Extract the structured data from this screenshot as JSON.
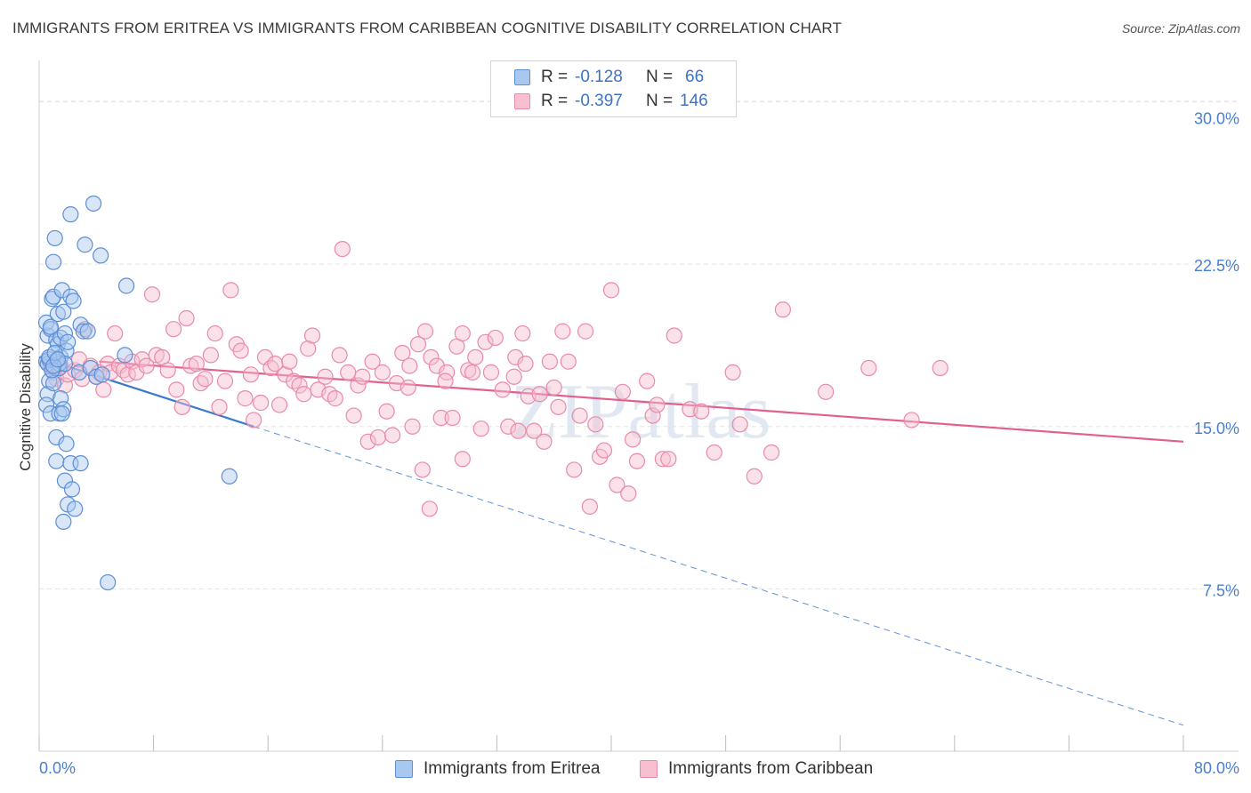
{
  "title": "IMMIGRANTS FROM ERITREA VS IMMIGRANTS FROM CARIBBEAN COGNITIVE DISABILITY CORRELATION CHART",
  "source": "Source: ZipAtlas.com",
  "watermark": "ZIPatlas",
  "legend": {
    "rows": [
      {
        "r_label": "R =",
        "r_value": "-0.128",
        "n_label": "N =",
        "n_value": "66"
      },
      {
        "r_label": "R =",
        "r_value": "-0.397",
        "n_label": "N =",
        "n_value": "146"
      }
    ]
  },
  "bottom_legend": {
    "series1": "Immigrants from Eritrea",
    "series2": "Immigrants from Caribbean"
  },
  "colors": {
    "eritrea_fill": "#a8c8f0",
    "eritrea_stroke": "#5b8fd6",
    "eritrea_line": "#3a78d0",
    "caribbean_fill": "#f7bfd0",
    "caribbean_stroke": "#e98aa8",
    "caribbean_line": "#e2608e",
    "tick_label": "#4a7fd0"
  },
  "chart_data": {
    "type": "scatter",
    "xlabel": "",
    "ylabel": "Cognitive Disability",
    "xlim": [
      0,
      80
    ],
    "ylim": [
      0,
      31.5
    ],
    "x_tick_labels": [
      "0.0%",
      "80.0%"
    ],
    "y_ticks": [
      7.5,
      15.0,
      22.5,
      30.0
    ],
    "y_tick_labels": [
      "7.5%",
      "15.0%",
      "22.5%",
      "30.0%"
    ],
    "grid": true,
    "legend_position": "top-center",
    "series": [
      {
        "name": "Immigrants from Eritrea",
        "points": [
          [
            0.5,
            18.0
          ],
          [
            0.6,
            19.2
          ],
          [
            0.5,
            19.8
          ],
          [
            0.6,
            17.9
          ],
          [
            0.7,
            18.1
          ],
          [
            0.8,
            19.5
          ],
          [
            0.9,
            20.9
          ],
          [
            1.0,
            21.0
          ],
          [
            0.7,
            17.1
          ],
          [
            0.6,
            16.5
          ],
          [
            0.5,
            16.0
          ],
          [
            0.8,
            15.6
          ],
          [
            1.0,
            22.6
          ],
          [
            1.1,
            23.7
          ],
          [
            1.2,
            18.0
          ],
          [
            1.2,
            19.0
          ],
          [
            1.3,
            20.2
          ],
          [
            1.3,
            18.8
          ],
          [
            1.4,
            17.7
          ],
          [
            1.4,
            17.9
          ],
          [
            1.5,
            18.2
          ],
          [
            1.5,
            19.1
          ],
          [
            1.6,
            21.3
          ],
          [
            1.7,
            20.3
          ],
          [
            1.8,
            19.3
          ],
          [
            1.9,
            18.5
          ],
          [
            2.0,
            18.9
          ],
          [
            1.8,
            17.9
          ],
          [
            1.5,
            16.3
          ],
          [
            1.4,
            15.6
          ],
          [
            1.7,
            15.8
          ],
          [
            1.6,
            15.6
          ],
          [
            1.2,
            14.5
          ],
          [
            1.2,
            13.4
          ],
          [
            1.9,
            14.2
          ],
          [
            1.8,
            12.5
          ],
          [
            2.0,
            11.4
          ],
          [
            1.7,
            10.6
          ],
          [
            2.2,
            21.0
          ],
          [
            2.4,
            20.8
          ],
          [
            2.2,
            13.3
          ],
          [
            2.3,
            12.1
          ],
          [
            2.5,
            11.2
          ],
          [
            2.8,
            17.5
          ],
          [
            2.9,
            13.3
          ],
          [
            2.9,
            19.7
          ],
          [
            3.1,
            19.4
          ],
          [
            3.2,
            23.4
          ],
          [
            3.4,
            19.4
          ],
          [
            3.6,
            17.7
          ],
          [
            4.0,
            17.3
          ],
          [
            4.3,
            22.9
          ],
          [
            4.4,
            17.4
          ],
          [
            2.2,
            24.8
          ],
          [
            3.8,
            25.3
          ],
          [
            6.1,
            21.5
          ],
          [
            6.0,
            18.3
          ],
          [
            4.8,
            7.8
          ],
          [
            13.3,
            12.7
          ],
          [
            1.0,
            17.0
          ],
          [
            0.7,
            18.2
          ],
          [
            0.9,
            17.6
          ],
          [
            1.0,
            17.8
          ],
          [
            0.8,
            19.6
          ],
          [
            1.1,
            18.4
          ],
          [
            1.3,
            18.1
          ]
        ],
        "trend": {
          "x": [
            0,
            15
          ],
          "y": [
            18.2,
            15.0
          ],
          "extended": {
            "x": [
              15,
              80
            ],
            "y": [
              15.0,
              1.2
            ]
          }
        }
      },
      {
        "name": "Immigrants from Caribbean",
        "points": [
          [
            0.8,
            17.8
          ],
          [
            1.0,
            17.5
          ],
          [
            1.2,
            17.2
          ],
          [
            1.5,
            17.8
          ],
          [
            1.8,
            16.9
          ],
          [
            2.0,
            17.4
          ],
          [
            2.5,
            17.6
          ],
          [
            2.8,
            18.1
          ],
          [
            3.0,
            17.2
          ],
          [
            3.2,
            19.5
          ],
          [
            3.6,
            17.8
          ],
          [
            4.0,
            17.3
          ],
          [
            4.2,
            17.5
          ],
          [
            4.5,
            16.7
          ],
          [
            4.8,
            17.9
          ],
          [
            5.0,
            17.5
          ],
          [
            5.3,
            19.3
          ],
          [
            5.6,
            17.8
          ],
          [
            5.9,
            17.6
          ],
          [
            6.2,
            17.4
          ],
          [
            6.5,
            18.0
          ],
          [
            6.8,
            17.5
          ],
          [
            7.2,
            18.1
          ],
          [
            7.5,
            17.8
          ],
          [
            7.9,
            21.1
          ],
          [
            8.2,
            18.3
          ],
          [
            8.6,
            18.2
          ],
          [
            9.0,
            17.6
          ],
          [
            9.4,
            19.5
          ],
          [
            9.6,
            16.7
          ],
          [
            10.0,
            15.9
          ],
          [
            10.3,
            20.0
          ],
          [
            10.6,
            17.8
          ],
          [
            11.0,
            17.9
          ],
          [
            11.3,
            17.0
          ],
          [
            11.6,
            17.2
          ],
          [
            12.0,
            18.3
          ],
          [
            12.3,
            19.3
          ],
          [
            12.6,
            15.9
          ],
          [
            13.0,
            17.1
          ],
          [
            13.4,
            21.3
          ],
          [
            13.8,
            18.8
          ],
          [
            14.1,
            18.5
          ],
          [
            14.4,
            16.3
          ],
          [
            14.8,
            17.4
          ],
          [
            15.0,
            15.3
          ],
          [
            15.5,
            16.1
          ],
          [
            15.8,
            18.2
          ],
          [
            16.2,
            17.7
          ],
          [
            16.5,
            17.9
          ],
          [
            16.8,
            16.0
          ],
          [
            17.2,
            17.4
          ],
          [
            17.5,
            18.0
          ],
          [
            17.8,
            17.1
          ],
          [
            18.2,
            16.9
          ],
          [
            18.5,
            16.5
          ],
          [
            18.8,
            18.6
          ],
          [
            19.1,
            19.2
          ],
          [
            19.5,
            16.7
          ],
          [
            20.0,
            17.3
          ],
          [
            20.3,
            16.5
          ],
          [
            20.7,
            16.3
          ],
          [
            21.0,
            18.3
          ],
          [
            21.2,
            23.2
          ],
          [
            21.6,
            17.5
          ],
          [
            22.0,
            15.5
          ],
          [
            22.3,
            16.9
          ],
          [
            22.6,
            17.3
          ],
          [
            23.0,
            14.3
          ],
          [
            23.3,
            18.0
          ],
          [
            23.7,
            14.5
          ],
          [
            24.0,
            17.5
          ],
          [
            24.3,
            15.7
          ],
          [
            24.7,
            14.6
          ],
          [
            25.0,
            17.0
          ],
          [
            25.4,
            18.4
          ],
          [
            25.8,
            16.8
          ],
          [
            26.1,
            15.0
          ],
          [
            26.5,
            18.8
          ],
          [
            26.8,
            13.0
          ],
          [
            27.0,
            19.4
          ],
          [
            27.4,
            18.2
          ],
          [
            27.8,
            17.8
          ],
          [
            28.1,
            15.4
          ],
          [
            28.5,
            17.5
          ],
          [
            28.9,
            15.4
          ],
          [
            29.2,
            18.7
          ],
          [
            29.6,
            19.3
          ],
          [
            30.0,
            17.6
          ],
          [
            30.5,
            18.2
          ],
          [
            30.9,
            14.9
          ],
          [
            31.2,
            18.9
          ],
          [
            31.6,
            17.5
          ],
          [
            31.9,
            19.1
          ],
          [
            32.4,
            16.7
          ],
          [
            32.8,
            15.0
          ],
          [
            33.2,
            17.3
          ],
          [
            33.5,
            14.8
          ],
          [
            33.8,
            19.3
          ],
          [
            34.2,
            16.4
          ],
          [
            34.6,
            14.8
          ],
          [
            35.0,
            16.5
          ],
          [
            35.3,
            14.3
          ],
          [
            35.7,
            18.0
          ],
          [
            36.0,
            16.8
          ],
          [
            36.3,
            15.9
          ],
          [
            36.6,
            19.4
          ],
          [
            37.0,
            18.0
          ],
          [
            37.4,
            13.0
          ],
          [
            37.8,
            15.5
          ],
          [
            38.2,
            19.4
          ],
          [
            38.5,
            11.3
          ],
          [
            38.9,
            15.1
          ],
          [
            39.2,
            13.6
          ],
          [
            39.5,
            13.9
          ],
          [
            40.0,
            21.3
          ],
          [
            40.4,
            12.3
          ],
          [
            40.8,
            16.6
          ],
          [
            41.2,
            11.9
          ],
          [
            41.5,
            14.4
          ],
          [
            41.8,
            13.4
          ],
          [
            42.5,
            17.1
          ],
          [
            42.9,
            15.5
          ],
          [
            43.2,
            16.0
          ],
          [
            43.6,
            13.5
          ],
          [
            44.0,
            13.5
          ],
          [
            44.4,
            19.2
          ],
          [
            45.5,
            15.8
          ],
          [
            46.3,
            15.7
          ],
          [
            47.2,
            13.8
          ],
          [
            48.5,
            17.5
          ],
          [
            49.0,
            15.1
          ],
          [
            50.0,
            12.7
          ],
          [
            51.2,
            13.8
          ],
          [
            52.0,
            20.4
          ],
          [
            55.0,
            16.6
          ],
          [
            58.0,
            17.7
          ],
          [
            61.0,
            15.3
          ],
          [
            63.0,
            17.7
          ],
          [
            27.3,
            11.2
          ],
          [
            30.3,
            17.5
          ],
          [
            28.4,
            17.1
          ],
          [
            29.6,
            13.5
          ],
          [
            25.9,
            17.8
          ],
          [
            33.3,
            18.2
          ],
          [
            34.0,
            17.9
          ]
        ],
        "trend": {
          "x": [
            4.2,
            80
          ],
          "y": [
            18.0,
            14.3
          ]
        }
      }
    ]
  }
}
